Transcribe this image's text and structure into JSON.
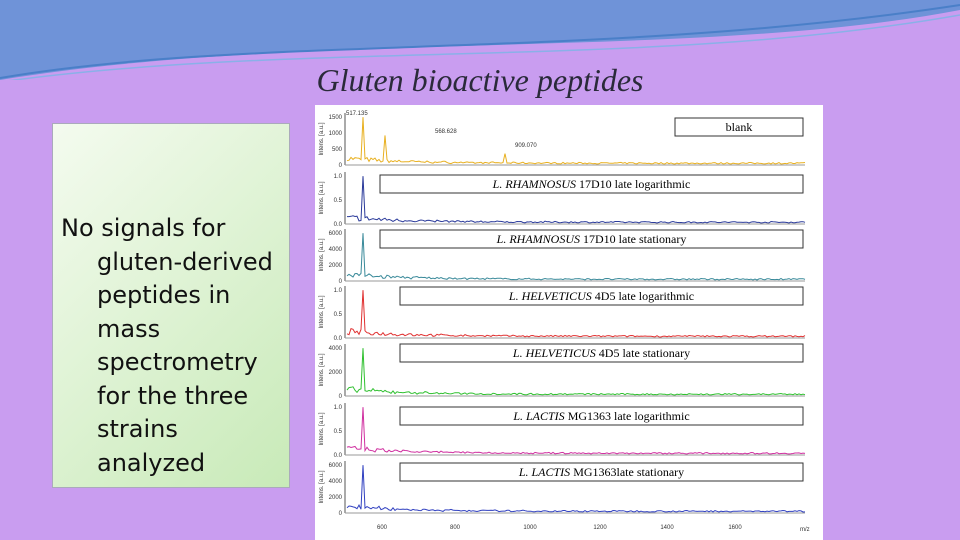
{
  "title": "Gluten bioactive peptides",
  "note": "No signals for gluten-derived peptides in mass spectrometry for the three strains analyzed",
  "figure": {
    "y_axis_label": "Intens. [a.u.]",
    "x_axis_label": "m/z",
    "x_ticks": [
      "600",
      "800",
      "1000",
      "1200",
      "1400",
      "1600"
    ],
    "peak_labels": [
      "517.135",
      "568.628",
      "909.070"
    ],
    "panels": [
      {
        "label_italic": "",
        "label_rest": "blank",
        "yticks": [
          "1500",
          "1000",
          "500",
          "0"
        ]
      },
      {
        "label_italic": "L. RHAMNOSUS",
        "label_rest": " 17D10 late logarithmic",
        "yticks": [
          "1.0",
          "0.5",
          "0.0"
        ]
      },
      {
        "label_italic": "L. RHAMNOSUS",
        "label_rest": " 17D10 late stationary",
        "yticks": [
          "6000",
          "4000",
          "2000",
          "0"
        ]
      },
      {
        "label_italic": "L. HELVETICUS",
        "label_rest": " 4D5 late logarithmic",
        "yticks": [
          "1.0",
          "0.5",
          "0.0"
        ]
      },
      {
        "label_italic": "L. HELVETICUS",
        "label_rest": " 4D5 late stationary",
        "yticks": [
          "4000",
          "2000",
          "0"
        ]
      },
      {
        "label_italic": "L. LACTIS",
        "label_rest": " MG1363 late logarithmic",
        "yticks": [
          "1.0",
          "0.5",
          "0.0"
        ]
      },
      {
        "label_italic": "L. LACTIS",
        "label_rest": " MG1363late stationary",
        "yticks": [
          "6000",
          "4000",
          "2000",
          "0"
        ]
      }
    ]
  }
}
